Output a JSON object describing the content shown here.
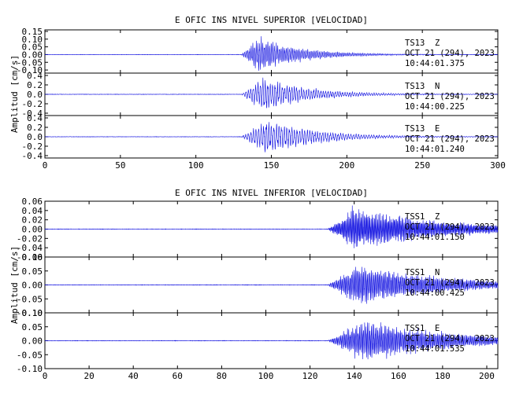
{
  "chart_data": [
    {
      "type": "line",
      "title": "E OFIC INS NIVEL SUPERIOR [VELOCIDAD]",
      "ylabel": "Amplitud [cm/s]",
      "xlim": [
        0,
        300
      ],
      "xticks": [
        "0",
        "50",
        "100",
        "150",
        "200",
        "250",
        "300"
      ],
      "grid": false,
      "panels": [
        {
          "station": "TS13",
          "component": "Z",
          "date": "OCT 21 (294), 2023",
          "time": "10:44:01.375",
          "ylim": [
            -0.12,
            0.16
          ],
          "yticks": [
            "0.15",
            "0.10",
            "0.05",
            "0.00",
            "-0.05",
            "-0.10"
          ],
          "onset": 130,
          "peak": 0.12,
          "peak_time": 142,
          "decay": 28,
          "period": 1.1
        },
        {
          "station": "TS13",
          "component": "N",
          "date": "OCT 21 (294), 2023",
          "time": "10:44:00.225",
          "ylim": [
            -0.45,
            0.45
          ],
          "yticks": [
            "0.4",
            "0.2",
            "0.0",
            "-0.2",
            "-0.4"
          ],
          "onset": 130,
          "peak": 0.38,
          "peak_time": 145,
          "decay": 30,
          "period": 1.6
        },
        {
          "station": "TS13",
          "component": "E",
          "date": "OCT 21 (294), 2023",
          "time": "10:44:01.240",
          "ylim": [
            -0.45,
            0.45
          ],
          "yticks": [
            "0.4",
            "0.2",
            "0.0",
            "-0.2",
            "-0.4"
          ],
          "onset": 130,
          "peak": 0.4,
          "peak_time": 148,
          "decay": 32,
          "period": 1.7
        }
      ]
    },
    {
      "type": "line",
      "title": "E OFIC INS NIVEL INFERIOR [VELOCIDAD]",
      "ylabel": "Amplitud [cm/s]",
      "xlim": [
        0,
        205
      ],
      "xticks": [
        "0",
        "20",
        "40",
        "60",
        "80",
        "100",
        "120",
        "140",
        "160",
        "180",
        "200"
      ],
      "grid": false,
      "panels": [
        {
          "station": "TSS1",
          "component": "Z",
          "date": "OCT 21 (294), 2023",
          "time": "10:44:01.150",
          "ylim": [
            -0.06,
            0.06
          ],
          "yticks": [
            "0.06",
            "0.04",
            "0.02",
            "0.00",
            "-0.02",
            "-0.04",
            "-0.06"
          ],
          "onset": 128,
          "peak": 0.05,
          "peak_time": 140,
          "decay": 40,
          "period": 0.5
        },
        {
          "station": "TSS1",
          "component": "N",
          "date": "OCT 21 (294), 2023",
          "time": "10:44:00.425",
          "ylim": [
            -0.1,
            0.1
          ],
          "yticks": [
            "0.10",
            "0.05",
            "0.00",
            "-0.05",
            "-0.10"
          ],
          "onset": 128,
          "peak": 0.08,
          "peak_time": 142,
          "decay": 40,
          "period": 0.6
        },
        {
          "station": "TSS1",
          "component": "E",
          "date": "OCT 21 (294), 2023",
          "time": "10:44:01.535",
          "ylim": [
            -0.1,
            0.1
          ],
          "yticks": [
            "0.10",
            "0.05",
            "0.00",
            "-0.05",
            "-0.10"
          ],
          "onset": 128,
          "peak": 0.08,
          "peak_time": 145,
          "decay": 40,
          "period": 0.6
        }
      ]
    }
  ],
  "colors": {
    "trace": "#1010e0",
    "axis": "#000000",
    "background": "#ffffff"
  }
}
